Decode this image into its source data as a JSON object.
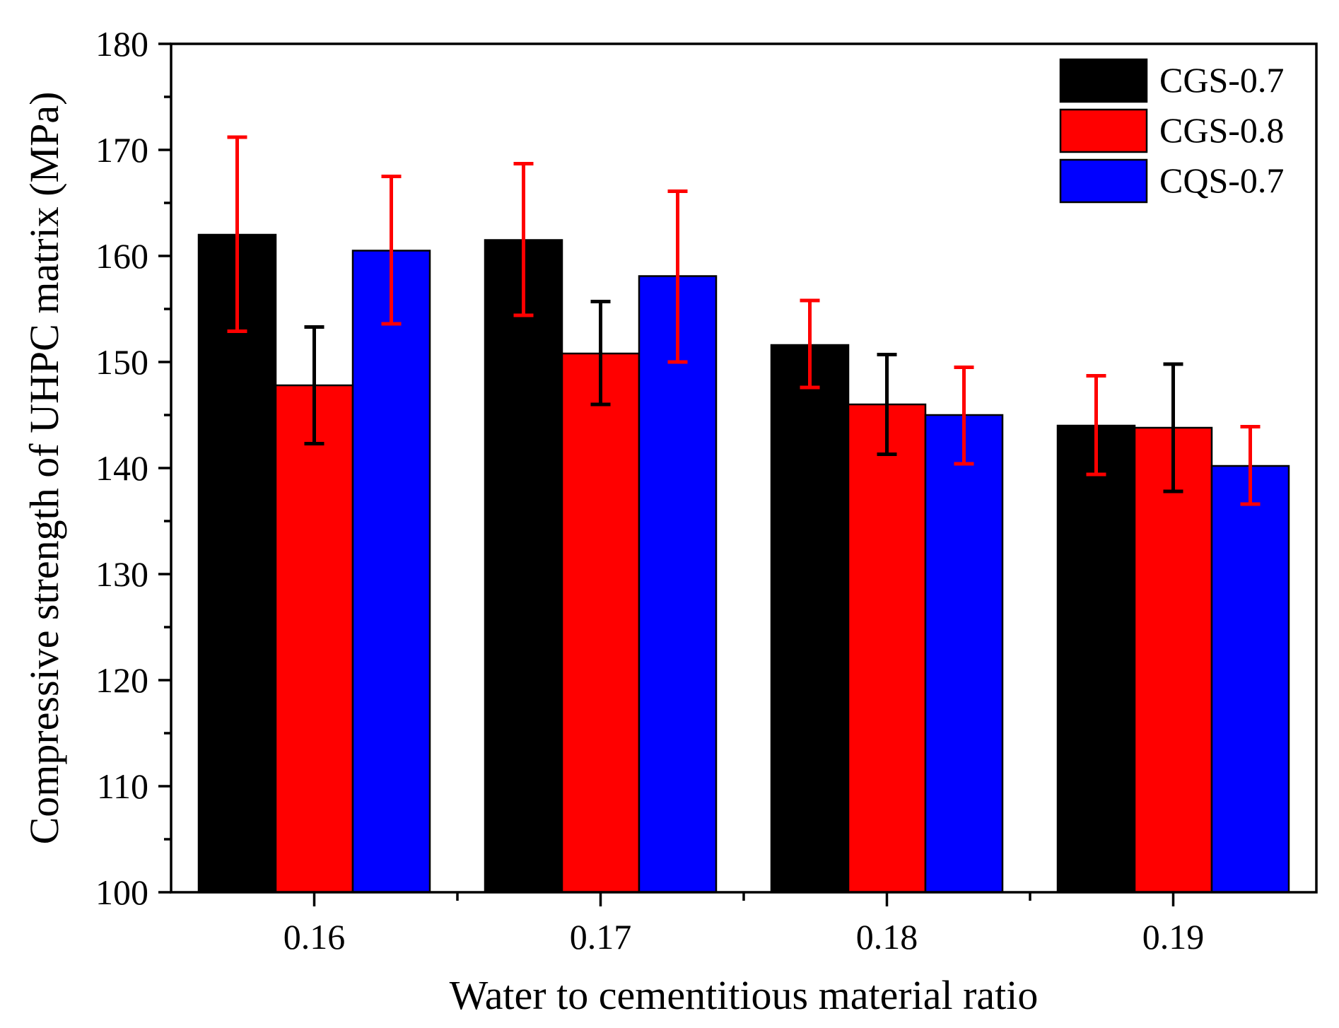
{
  "chart_data": {
    "type": "bar",
    "title": "",
    "xlabel": "Water to cementitious material ratio",
    "ylabel": "Compressive strength of UHPC matrix (MPa)",
    "categories": [
      "0.16",
      "0.17",
      "0.18",
      "0.19"
    ],
    "ylim": [
      100,
      180
    ],
    "yticks": [
      100,
      110,
      120,
      130,
      140,
      150,
      160,
      170,
      180
    ],
    "ytick_labels": [
      "100",
      "110",
      "120",
      "130",
      "140",
      "150",
      "160",
      "170",
      "180"
    ],
    "grid": false,
    "legend_position": "top-right",
    "series": [
      {
        "name": "CGS-0.7",
        "color": "#000000",
        "error_color": "#ff0000",
        "values": [
          162.0,
          161.5,
          151.6,
          144.0
        ],
        "error_low": [
          152.9,
          154.4,
          147.6,
          139.4
        ],
        "error_high": [
          171.2,
          168.7,
          155.8,
          148.7
        ]
      },
      {
        "name": "CGS-0.8",
        "color": "#ff0000",
        "error_color": "#000000",
        "values": [
          147.8,
          150.8,
          146.0,
          143.8
        ],
        "error_low": [
          142.3,
          146.0,
          141.3,
          137.8
        ],
        "error_high": [
          153.3,
          155.7,
          150.7,
          149.8
        ]
      },
      {
        "name": "CQS-0.7",
        "color": "#0000ff",
        "error_color": "#ff0000",
        "values": [
          160.5,
          158.1,
          145.0,
          140.2
        ],
        "error_low": [
          153.6,
          150.0,
          140.4,
          136.6
        ],
        "error_high": [
          167.5,
          166.1,
          149.5,
          143.9
        ]
      }
    ]
  }
}
